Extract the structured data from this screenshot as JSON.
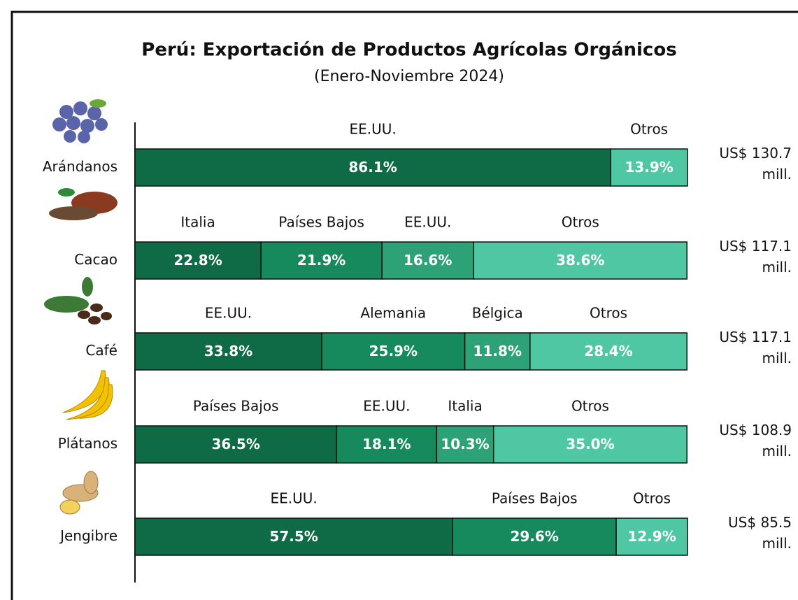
{
  "chart_data": {
    "type": "stacked-bar",
    "title": "Perú: Exportación de Productos Agrícolas Orgánicos",
    "subtitle": "(Enero-Noviembre 2024)",
    "xlim": [
      0,
      100
    ],
    "rows": [
      {
        "name": "Arándanos",
        "total_label": "US$ 130.7 mill.",
        "names": [
          "EE.UU.",
          "Otros"
        ],
        "values": [
          86.1,
          13.9
        ],
        "value_labels": [
          "86.1%",
          "13.9%"
        ],
        "colors": [
          "#0e6b46",
          "#4fc7a2"
        ]
      },
      {
        "name": "Cacao",
        "total_label": "US$ 117.1 mill.",
        "names": [
          "Italia",
          "Países Bajos",
          "EE.UU.",
          "Otros"
        ],
        "values": [
          22.8,
          21.9,
          16.6,
          38.6
        ],
        "value_labels": [
          "22.8%",
          "21.9%",
          "16.6%",
          "38.6%"
        ],
        "colors": [
          "#0e6b46",
          "#168a5c",
          "#2ea277",
          "#4fc7a2"
        ]
      },
      {
        "name": "Café",
        "total_label": "US$ 117.1 mill.",
        "names": [
          "EE.UU.",
          "Alemania",
          "Bélgica",
          "Otros"
        ],
        "values": [
          33.8,
          25.9,
          11.8,
          28.4
        ],
        "value_labels": [
          "33.8%",
          "25.9%",
          "11.8%",
          "28.4%"
        ],
        "colors": [
          "#0e6b46",
          "#168a5c",
          "#2ea277",
          "#4fc7a2"
        ]
      },
      {
        "name": "Plátanos",
        "total_label": "US$ 108.9 mill.",
        "names": [
          "Países Bajos",
          "EE.UU.",
          "Italia",
          "Otros"
        ],
        "values": [
          36.5,
          18.1,
          10.3,
          35.0
        ],
        "value_labels": [
          "36.5%",
          "18.1%",
          "10.3%",
          "35.0%"
        ],
        "colors": [
          "#0e6b46",
          "#168a5c",
          "#2ea277",
          "#4fc7a2"
        ]
      },
      {
        "name": "Jengibre",
        "total_label": "US$ 85.5 mill.",
        "names": [
          "EE.UU.",
          "Países Bajos",
          "Otros"
        ],
        "values": [
          57.5,
          29.6,
          12.9
        ],
        "value_labels": [
          "57.5%",
          "29.6%",
          "12.9%"
        ],
        "colors": [
          "#0e6b46",
          "#168a5c",
          "#4fc7a2"
        ]
      }
    ]
  }
}
